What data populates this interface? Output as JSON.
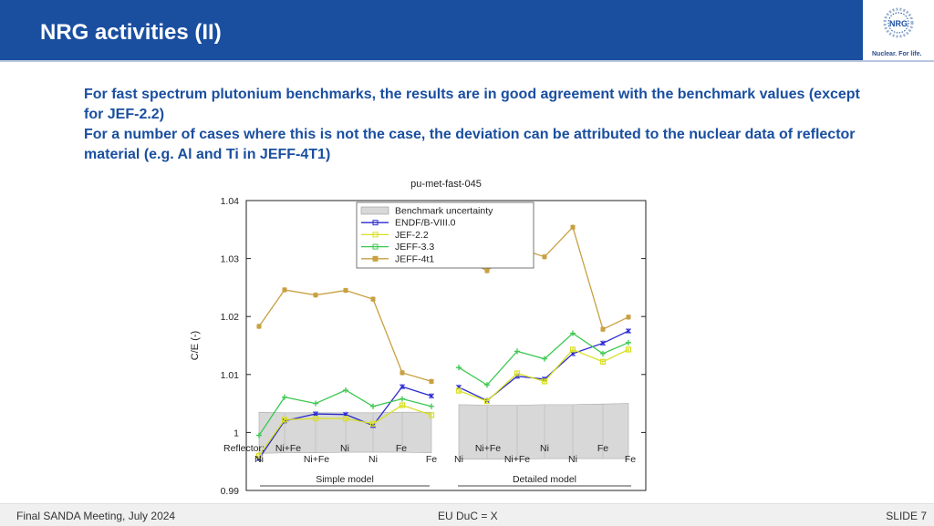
{
  "header": {
    "title": "NRG activities (II)",
    "logo_name": "NRG",
    "logo_tagline": "Nuclear. For life."
  },
  "body": {
    "paragraph_1": "For fast spectrum plutonium benchmarks, the results are in good agreement with the benchmark values (except for JEF-2.2)",
    "paragraph_2": "For a number of cases where this is not the case, the deviation can be attributed to the nuclear data of reflector material (e.g. Al and Ti in JEFF-4T1)"
  },
  "footer": {
    "left": "Final SANDA Meeting, July 2024",
    "center": "EU DuC = X",
    "right": "SLIDE 7"
  },
  "colors": {
    "brand_blue": "#1a4fa0",
    "endf": "#2a2ad0",
    "jef": "#d8e020",
    "jeff33": "#3cc850",
    "jeff4": "#c8a040",
    "uncertainty": "#d8d8d8"
  },
  "chart_data": {
    "type": "line",
    "title": "pu-met-fast-045",
    "ylabel": "C/E (-)",
    "ylim": [
      0.99,
      1.04
    ],
    "yticks": [
      "0.99",
      "1",
      "1.01",
      "1.02",
      "1.03",
      "1.04"
    ],
    "reflector_label": "Reflector:",
    "groups": [
      {
        "name": "Simple model",
        "categories": [
          "Ni",
          "Ni+Fe",
          "Ni+Fe",
          "Ni",
          "Ni",
          "Ni",
          "Fe",
          "Fe"
        ],
        "uncertainty": [
          [
            0.9964,
            1.0035
          ],
          [
            0.9965,
            1.0034
          ],
          [
            0.9965,
            1.0034
          ],
          [
            0.9966,
            1.0034
          ],
          [
            0.9966,
            1.0034
          ],
          [
            0.9966,
            1.0035
          ],
          [
            0.9965,
            1.0035
          ],
          [
            0.9966,
            1.0034
          ]
        ],
        "series": [
          {
            "name": "ENDF/B-VIII.0",
            "values": [
              0.9955,
              1.002,
              1.0032,
              1.0031,
              1.0012,
              1.0079,
              1.0063,
              1.0063
            ]
          },
          {
            "name": "JEF-2.2",
            "values": [
              0.996,
              1.0022,
              1.0024,
              1.0024,
              1.0015,
              1.0047,
              1.003,
              1.003
            ]
          },
          {
            "name": "JEFF-3.3",
            "values": [
              0.9995,
              1.0061,
              1.005,
              1.0073,
              1.0045,
              1.0058,
              1.0045,
              1.0045
            ]
          },
          {
            "name": "JEFF-4t1",
            "values": [
              1.0183,
              1.0246,
              1.0237,
              1.0245,
              1.023,
              1.0103,
              1.0088,
              1.0088
            ]
          }
        ]
      },
      {
        "name": "Detailed model",
        "categories": [
          "Ni",
          "Ni+Fe",
          "Ni+Fe",
          "Ni",
          "Ni",
          "Ni",
          "Fe",
          "Fe"
        ],
        "uncertainty": [
          [
            0.9954,
            1.0048
          ],
          [
            0.9954,
            1.0047
          ],
          [
            0.9954,
            1.0047
          ],
          [
            0.9955,
            1.0048
          ],
          [
            0.9955,
            1.0048
          ],
          [
            0.9955,
            1.0049
          ],
          [
            0.9955,
            1.005
          ],
          [
            0.9955,
            1.005
          ]
        ],
        "series": [
          {
            "name": "ENDF/B-VIII.0",
            "values": [
              1.0078,
              1.0055,
              1.0097,
              1.0092,
              1.0136,
              1.0154,
              1.0175,
              1.0175
            ]
          },
          {
            "name": "JEF-2.2",
            "values": [
              1.0072,
              1.0054,
              1.0102,
              1.0088,
              1.0143,
              1.0122,
              1.0143,
              1.0143
            ]
          },
          {
            "name": "JEFF-3.3",
            "values": [
              1.0112,
              1.0082,
              1.014,
              1.0127,
              1.0171,
              1.0136,
              1.0155,
              1.0155
            ]
          },
          {
            "name": "JEFF-4t1",
            "values": [
              1.0304,
              1.0279,
              1.0318,
              1.0303,
              1.0354,
              1.0178,
              1.0199,
              1.0199
            ]
          }
        ]
      }
    ],
    "top_row_labels": [
      [
        "Ni+Fe",
        "Ni",
        "Fe"
      ],
      [
        "Ni+Fe",
        "Ni",
        "Fe"
      ]
    ],
    "bottom_row_labels": [
      [
        "Ni",
        "Ni+Fe",
        "Ni",
        "Fe"
      ],
      [
        "Ni",
        "Ni+Fe",
        "Ni",
        "Fe"
      ]
    ],
    "legend": [
      "Benchmark uncertainty",
      "ENDF/B-VIII.0",
      "JEF-2.2",
      "JEFF-3.3",
      "JEFF-4t1"
    ],
    "legend_position": "top-center",
    "grid": false
  }
}
